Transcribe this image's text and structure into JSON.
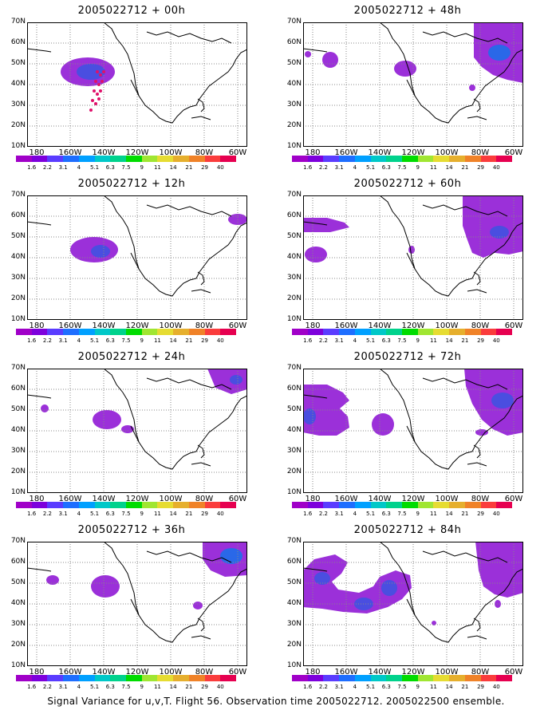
{
  "panels": [
    {
      "id": "p00",
      "title": "2005022712 + 00h"
    },
    {
      "id": "p48",
      "title": "2005022712 + 48h"
    },
    {
      "id": "p12",
      "title": "2005022712 + 12h"
    },
    {
      "id": "p60",
      "title": "2005022712 + 60h"
    },
    {
      "id": "p24",
      "title": "2005022712 + 24h"
    },
    {
      "id": "p72",
      "title": "2005022712 + 72h"
    },
    {
      "id": "p36",
      "title": "2005022712 + 36h"
    },
    {
      "id": "p84",
      "title": "2005022712 + 84h"
    }
  ],
  "axes": {
    "lat_labels": [
      "70N",
      "60N",
      "50N",
      "40N",
      "30N",
      "20N",
      "10N"
    ],
    "lon_labels": [
      "180",
      "160W",
      "140W",
      "120W",
      "100W",
      "80W",
      "60W"
    ]
  },
  "colorbar": {
    "labels": [
      "1.6",
      "2.2",
      "3.1",
      "4",
      "5.1",
      "6.3",
      "7.5",
      "9",
      "11",
      "14",
      "21",
      "29",
      "40"
    ],
    "colors": [
      "#a000c8",
      "#7d00dc",
      "#5a3cff",
      "#1e6eff",
      "#00a0ff",
      "#00c8c8",
      "#00d28c",
      "#00dc00",
      "#a0e632",
      "#e6dc32",
      "#e6af2d",
      "#f08228",
      "#fa3c3c",
      "#e60050"
    ]
  },
  "footer": "Signal Variance for u,v,T. Flight 56. Observation time 2005022712. 2005022500 ensemble.",
  "colors": {
    "purple": "#9b30d9",
    "blue_core": "#4a4ee0",
    "deep_blue": "#2a68e8",
    "flight_track": "#e0106a"
  }
}
